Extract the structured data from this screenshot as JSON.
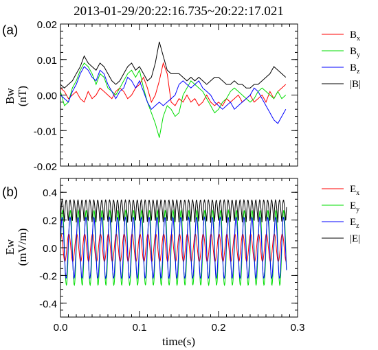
{
  "chart_data": [
    {
      "type": "line",
      "panel_label": "(a)",
      "title": "2013-01-29/20:22:16.735~20:22:17.021",
      "ylabel_main": "Bw",
      "ylabel_unit": "(nT)",
      "xlim": [
        0.0,
        0.3
      ],
      "ylim": [
        -0.02,
        0.02
      ],
      "yticks": [
        "0.02",
        "0.01",
        "0.00",
        "-0.01",
        "-0.02"
      ],
      "ytick_values": [
        0.02,
        0.01,
        0.0,
        -0.01,
        -0.02
      ],
      "grid": false,
      "legend_position": "right",
      "x": [
        0.0,
        0.005,
        0.01,
        0.015,
        0.02,
        0.025,
        0.03,
        0.035,
        0.04,
        0.045,
        0.05,
        0.055,
        0.06,
        0.065,
        0.07,
        0.075,
        0.08,
        0.085,
        0.09,
        0.095,
        0.1,
        0.105,
        0.11,
        0.115,
        0.12,
        0.125,
        0.13,
        0.135,
        0.14,
        0.145,
        0.15,
        0.155,
        0.16,
        0.165,
        0.17,
        0.175,
        0.18,
        0.185,
        0.19,
        0.195,
        0.2,
        0.205,
        0.21,
        0.215,
        0.22,
        0.225,
        0.23,
        0.235,
        0.24,
        0.245,
        0.25,
        0.255,
        0.26,
        0.265,
        0.27,
        0.275,
        0.28,
        0.285
      ],
      "series": [
        {
          "name": "Bx",
          "label_main": "B",
          "label_sub": "x",
          "color": "#ff0000",
          "values": [
            0.002,
            0.001,
            -0.001,
            0.0,
            0.001,
            -0.001,
            -0.002,
            0.001,
            -0.001,
            0.0,
            0.002,
            0.001,
            0.0,
            -0.001,
            0.001,
            0.002,
            0.001,
            -0.001,
            0.0,
            0.002,
            0.003,
            0.005,
            0.002,
            -0.002,
            0.0,
            0.004,
            0.009,
            0.006,
            -0.002,
            -0.003,
            -0.001,
            -0.002,
            0.0,
            -0.002,
            -0.001,
            -0.003,
            -0.002,
            0.0,
            -0.002,
            -0.003,
            -0.002,
            -0.003,
            -0.001,
            -0.002,
            -0.001,
            0.0,
            -0.002,
            -0.001,
            0.0,
            -0.002,
            -0.001,
            0.0,
            -0.002,
            0.001,
            -0.001,
            0.001,
            0.002,
            0.003
          ]
        },
        {
          "name": "By",
          "label_main": "B",
          "label_sub": "y",
          "color": "#00dd00",
          "values": [
            0.001,
            -0.003,
            -0.002,
            0.002,
            0.004,
            0.007,
            0.009,
            0.008,
            0.006,
            0.003,
            0.006,
            0.005,
            0.002,
            0.001,
            0.0,
            0.002,
            0.004,
            0.006,
            0.007,
            0.005,
            0.007,
            0.002,
            -0.002,
            -0.005,
            -0.008,
            -0.012,
            -0.006,
            -0.003,
            -0.004,
            -0.006,
            -0.005,
            0.0,
            0.002,
            0.004,
            0.003,
            0.002,
            0.001,
            -0.001,
            -0.003,
            -0.005,
            -0.004,
            -0.002,
            -0.001,
            0.001,
            0.002,
            0.001,
            0.0,
            -0.001,
            -0.002,
            -0.001,
            0.001,
            0.002,
            0.001,
            0.0,
            -0.001,
            0.001,
            -0.001,
            0.0
          ]
        },
        {
          "name": "Bz",
          "label_main": "B",
          "label_sub": "z",
          "color": "#0000ff",
          "values": [
            0.0,
            -0.001,
            -0.002,
            0.001,
            0.003,
            0.006,
            0.008,
            0.007,
            0.005,
            0.004,
            0.007,
            0.006,
            0.003,
            0.001,
            -0.001,
            0.001,
            0.002,
            0.005,
            0.004,
            0.002,
            0.004,
            0.001,
            -0.002,
            -0.004,
            -0.003,
            -0.002,
            -0.003,
            -0.002,
            -0.001,
            0.0,
            0.003,
            0.004,
            0.003,
            0.002,
            0.003,
            0.004,
            0.002,
            0.001,
            0.0,
            -0.002,
            -0.003,
            -0.004,
            -0.003,
            -0.002,
            -0.004,
            -0.003,
            -0.002,
            -0.001,
            0.0,
            0.002,
            0.001,
            -0.001,
            -0.003,
            -0.005,
            -0.007,
            -0.008,
            -0.006,
            -0.004
          ]
        },
        {
          "name": "|B|",
          "label_main": "|B|",
          "label_sub": "",
          "color": "#000000",
          "values": [
            0.003,
            0.002,
            0.003,
            0.004,
            0.006,
            0.008,
            0.011,
            0.009,
            0.008,
            0.007,
            0.009,
            0.008,
            0.006,
            0.004,
            0.003,
            0.004,
            0.006,
            0.008,
            0.009,
            0.007,
            0.008,
            0.006,
            0.004,
            0.005,
            0.009,
            0.015,
            0.011,
            0.007,
            0.006,
            0.006,
            0.006,
            0.005,
            0.004,
            0.005,
            0.004,
            0.005,
            0.004,
            0.003,
            0.004,
            0.005,
            0.005,
            0.004,
            0.003,
            0.003,
            0.004,
            0.003,
            0.003,
            0.002,
            0.002,
            0.003,
            0.003,
            0.004,
            0.005,
            0.006,
            0.008,
            0.007,
            0.006,
            0.005
          ]
        }
      ]
    },
    {
      "type": "line",
      "panel_label": "(b)",
      "ylabel_main": "Ew",
      "ylabel_unit": "(mV/m)",
      "xlabel": "time(s)",
      "xlim": [
        0.0,
        0.3
      ],
      "ylim": [
        -0.5,
        0.5
      ],
      "xticks": [
        "0.0",
        "0.1",
        "0.2",
        "0.3"
      ],
      "xtick_values": [
        0.0,
        0.1,
        0.2,
        0.3
      ],
      "yticks": [
        "0.4",
        "0.2",
        "0.0",
        "-0.2",
        "-0.4"
      ],
      "ytick_values": [
        0.4,
        0.2,
        0.0,
        -0.2,
        -0.4
      ],
      "grid": false,
      "legend_position": "right",
      "wave": {
        "frequency_hz": 100,
        "duration_s": 0.286
      },
      "series": [
        {
          "name": "Ex",
          "label_main": "E",
          "label_sub": "x",
          "color": "#ff0000",
          "amplitude": 0.1,
          "phase": 1.2
        },
        {
          "name": "Ey",
          "label_main": "E",
          "label_sub": "y",
          "color": "#00dd00",
          "amplitude": 0.27,
          "phase": 0.0
        },
        {
          "name": "Ez",
          "label_main": "E",
          "label_sub": "z",
          "color": "#0000ff",
          "amplitude": 0.22,
          "phase": 0.2
        },
        {
          "name": "|E|",
          "label_main": "|E|",
          "label_sub": "",
          "color": "#000000",
          "amplitude": 0.34,
          "phase": 0.0
        }
      ]
    }
  ]
}
